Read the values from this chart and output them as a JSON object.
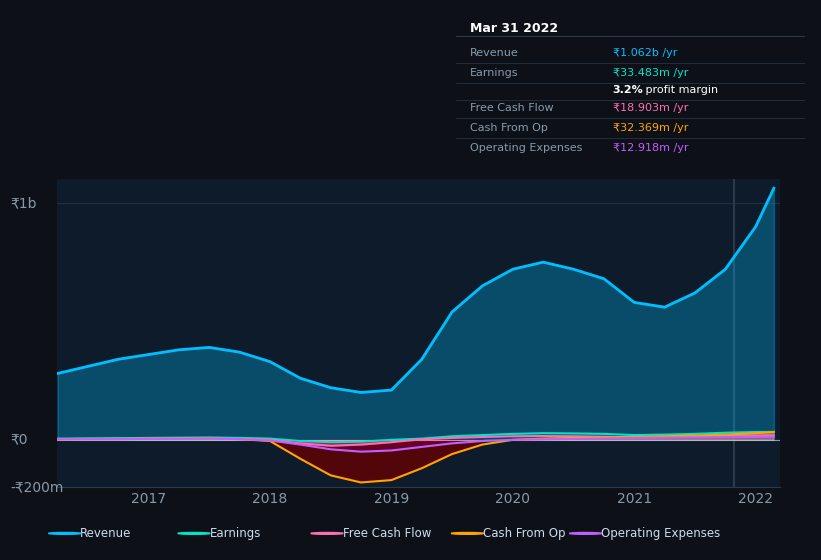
{
  "bg_color": "#0d1117",
  "plot_bg": "#0d1b2a",
  "x_years": [
    2016.25,
    2016.5,
    2016.75,
    2017.0,
    2017.25,
    2017.5,
    2017.75,
    2018.0,
    2018.25,
    2018.5,
    2018.75,
    2019.0,
    2019.25,
    2019.5,
    2019.75,
    2020.0,
    2020.25,
    2020.5,
    2020.75,
    2021.0,
    2021.25,
    2021.5,
    2021.75,
    2022.0,
    2022.15
  ],
  "revenue": [
    280,
    310,
    340,
    360,
    380,
    390,
    370,
    330,
    260,
    220,
    200,
    210,
    340,
    540,
    650,
    720,
    750,
    720,
    680,
    580,
    560,
    620,
    720,
    900,
    1062
  ],
  "earnings": [
    5,
    6,
    7,
    8,
    9,
    10,
    8,
    5,
    -5,
    -10,
    -8,
    0,
    5,
    15,
    20,
    25,
    28,
    27,
    25,
    20,
    22,
    25,
    30,
    33,
    33.5
  ],
  "free_cash_flow": [
    2,
    3,
    3,
    4,
    4,
    5,
    4,
    0,
    -15,
    -25,
    -20,
    -10,
    2,
    8,
    12,
    15,
    16,
    15,
    13,
    10,
    12,
    15,
    17,
    18,
    18.9
  ],
  "cash_from_op": [
    3,
    4,
    4,
    5,
    5,
    5,
    3,
    -5,
    -80,
    -150,
    -180,
    -170,
    -120,
    -60,
    -20,
    0,
    5,
    8,
    10,
    12,
    15,
    18,
    22,
    28,
    32.4
  ],
  "operating_expenses": [
    2,
    3,
    3,
    4,
    4,
    5,
    3,
    -3,
    -20,
    -40,
    -50,
    -45,
    -30,
    -15,
    -5,
    0,
    2,
    4,
    6,
    8,
    9,
    10,
    11,
    12,
    12.9
  ],
  "ylim_min": -200,
  "ylim_max": 1100,
  "ylabel_left": "₹1b",
  "ylabel_zero": "₹0",
  "ylabel_neg": "-₹200m",
  "xticks": [
    2017,
    2018,
    2019,
    2020,
    2021,
    2022
  ],
  "legend": [
    {
      "label": "Revenue",
      "color": "#00bfff"
    },
    {
      "label": "Earnings",
      "color": "#00e5c8"
    },
    {
      "label": "Free Cash Flow",
      "color": "#ff6eb4"
    },
    {
      "label": "Cash From Op",
      "color": "#ffa500"
    },
    {
      "label": "Operating Expenses",
      "color": "#bf5fff"
    }
  ],
  "vline_x": 2021.82,
  "colors": {
    "revenue": "#00bfff",
    "earnings": "#00e5c8",
    "free_cash_flow": "#ff6eb4",
    "cash_from_op": "#ffa500",
    "operating_expenses": "#bf5fff"
  },
  "info_box": {
    "date": "Mar 31 2022",
    "rows": [
      {
        "label": "Revenue",
        "value": "₹1.062b /yr",
        "value_color": "#00bfff"
      },
      {
        "label": "Earnings",
        "value": "₹33.483m /yr",
        "value_color": "#00e5c8"
      },
      {
        "label": "",
        "value": "3.2% profit margin",
        "value_color": "#ffffff"
      },
      {
        "label": "Free Cash Flow",
        "value": "₹18.903m /yr",
        "value_color": "#ff6eb4"
      },
      {
        "label": "Cash From Op",
        "value": "₹32.369m /yr",
        "value_color": "#ffa500"
      },
      {
        "label": "Operating Expenses",
        "value": "₹12.918m /yr",
        "value_color": "#bf5fff"
      }
    ]
  }
}
